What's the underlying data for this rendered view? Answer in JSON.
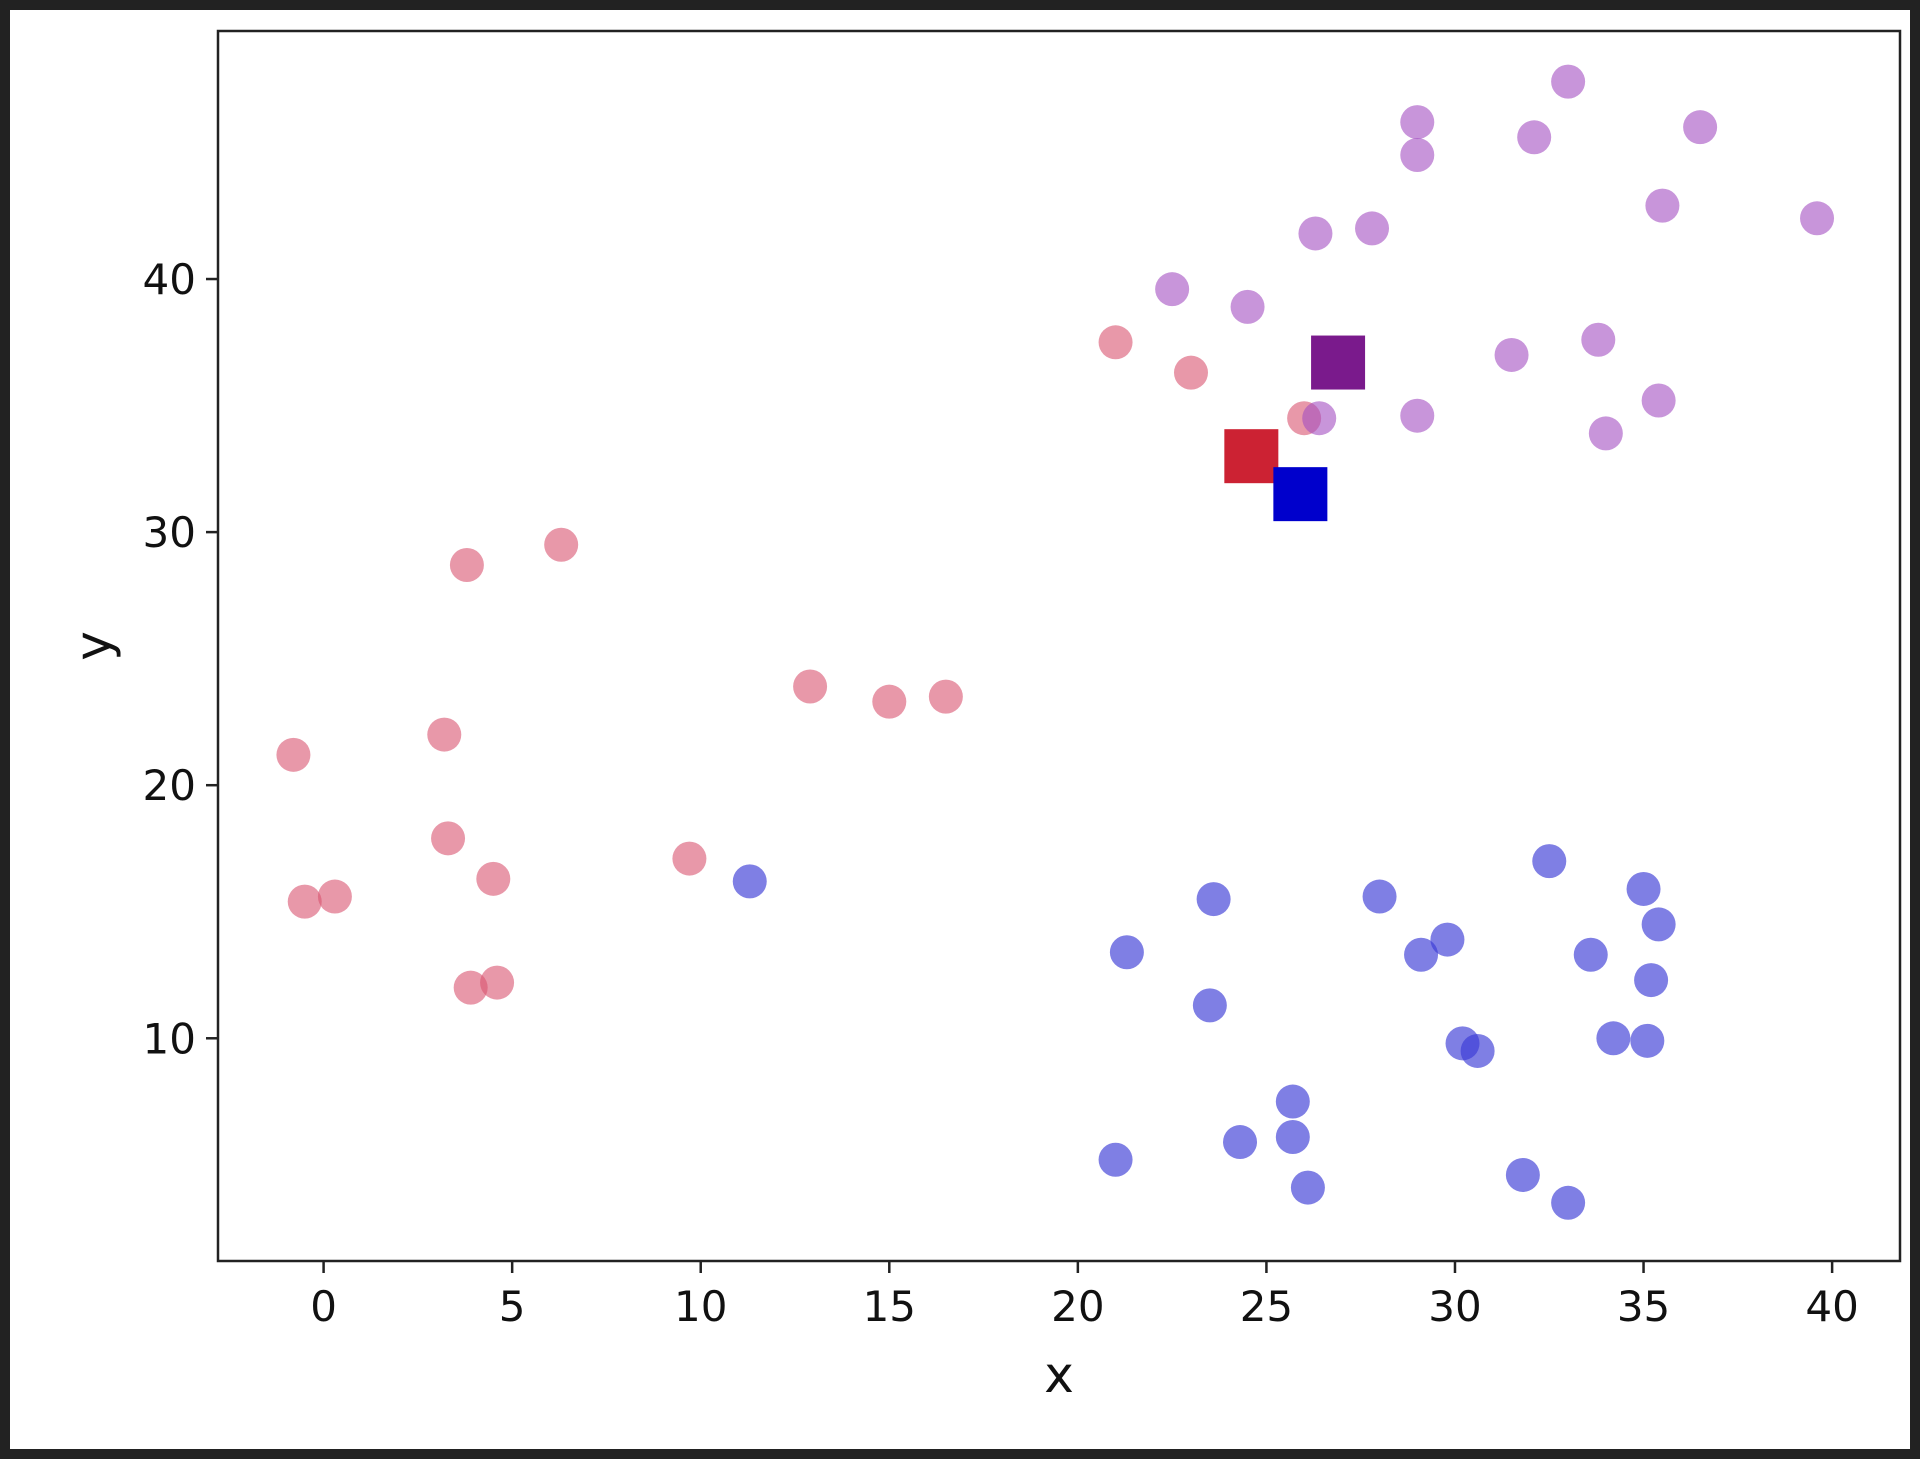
{
  "chart_data": {
    "type": "scatter",
    "xlabel": "x",
    "ylabel": "y",
    "xlim": [
      -2.8,
      41.8
    ],
    "ylim": [
      1.2,
      49.8
    ],
    "xticks": [
      0,
      5,
      10,
      15,
      20,
      25,
      30,
      35,
      40
    ],
    "yticks": [
      10,
      20,
      30,
      40
    ],
    "grid": false,
    "series": [
      {
        "color": "#d9536f",
        "marker": "circle",
        "alpha": 0.6,
        "points": [
          [
            -0.8,
            21.2
          ],
          [
            -0.5,
            15.4
          ],
          [
            0.3,
            15.6
          ],
          [
            3.2,
            22.0
          ],
          [
            3.3,
            17.9
          ],
          [
            3.8,
            28.7
          ],
          [
            3.9,
            12.0
          ],
          [
            4.5,
            16.3
          ],
          [
            4.6,
            12.2
          ],
          [
            6.3,
            29.5
          ],
          [
            9.7,
            17.1
          ],
          [
            12.9,
            23.9
          ],
          [
            15.0,
            23.3
          ],
          [
            16.5,
            23.5
          ],
          [
            21.0,
            37.5
          ],
          [
            23.0,
            36.3
          ],
          [
            26.0,
            34.5
          ]
        ]
      },
      {
        "color": "#a34fc1",
        "marker": "circle",
        "alpha": 0.6,
        "points": [
          [
            22.5,
            39.6
          ],
          [
            24.5,
            38.9
          ],
          [
            26.3,
            41.8
          ],
          [
            26.4,
            34.5
          ],
          [
            27.8,
            42.0
          ],
          [
            29.0,
            44.9
          ],
          [
            29.0,
            46.2
          ],
          [
            29.0,
            34.6
          ],
          [
            31.5,
            37.0
          ],
          [
            32.1,
            45.6
          ],
          [
            33.0,
            47.8
          ],
          [
            33.8,
            37.6
          ],
          [
            34.0,
            33.9
          ],
          [
            35.4,
            35.2
          ],
          [
            35.5,
            42.9
          ],
          [
            36.5,
            46.0
          ],
          [
            39.6,
            42.4
          ]
        ]
      },
      {
        "color": "#3b3bd6",
        "marker": "circle",
        "alpha": 0.65,
        "points": [
          [
            11.3,
            16.2
          ],
          [
            21.0,
            5.2
          ],
          [
            21.3,
            13.4
          ],
          [
            23.5,
            11.3
          ],
          [
            23.6,
            15.5
          ],
          [
            24.3,
            5.9
          ],
          [
            25.7,
            7.5
          ],
          [
            25.7,
            6.1
          ],
          [
            26.1,
            4.1
          ],
          [
            28.0,
            15.6
          ],
          [
            29.1,
            13.3
          ],
          [
            29.8,
            13.9
          ],
          [
            30.2,
            9.8
          ],
          [
            30.6,
            9.5
          ],
          [
            31.8,
            4.6
          ],
          [
            32.5,
            17.0
          ],
          [
            33.0,
            3.5
          ],
          [
            33.6,
            13.3
          ],
          [
            34.2,
            10.0
          ],
          [
            35.0,
            15.9
          ],
          [
            35.4,
            14.5
          ],
          [
            35.2,
            12.3
          ],
          [
            35.1,
            9.9
          ]
        ]
      },
      {
        "color": "#cc2233",
        "marker": "square",
        "alpha": 1.0,
        "points": [
          [
            24.6,
            33.0
          ]
        ]
      },
      {
        "color": "#0000cc",
        "marker": "square",
        "alpha": 1.0,
        "points": [
          [
            25.9,
            31.5
          ]
        ]
      },
      {
        "color": "#7a1a8c",
        "marker": "square",
        "alpha": 1.0,
        "points": [
          [
            26.9,
            36.7
          ]
        ]
      }
    ]
  }
}
